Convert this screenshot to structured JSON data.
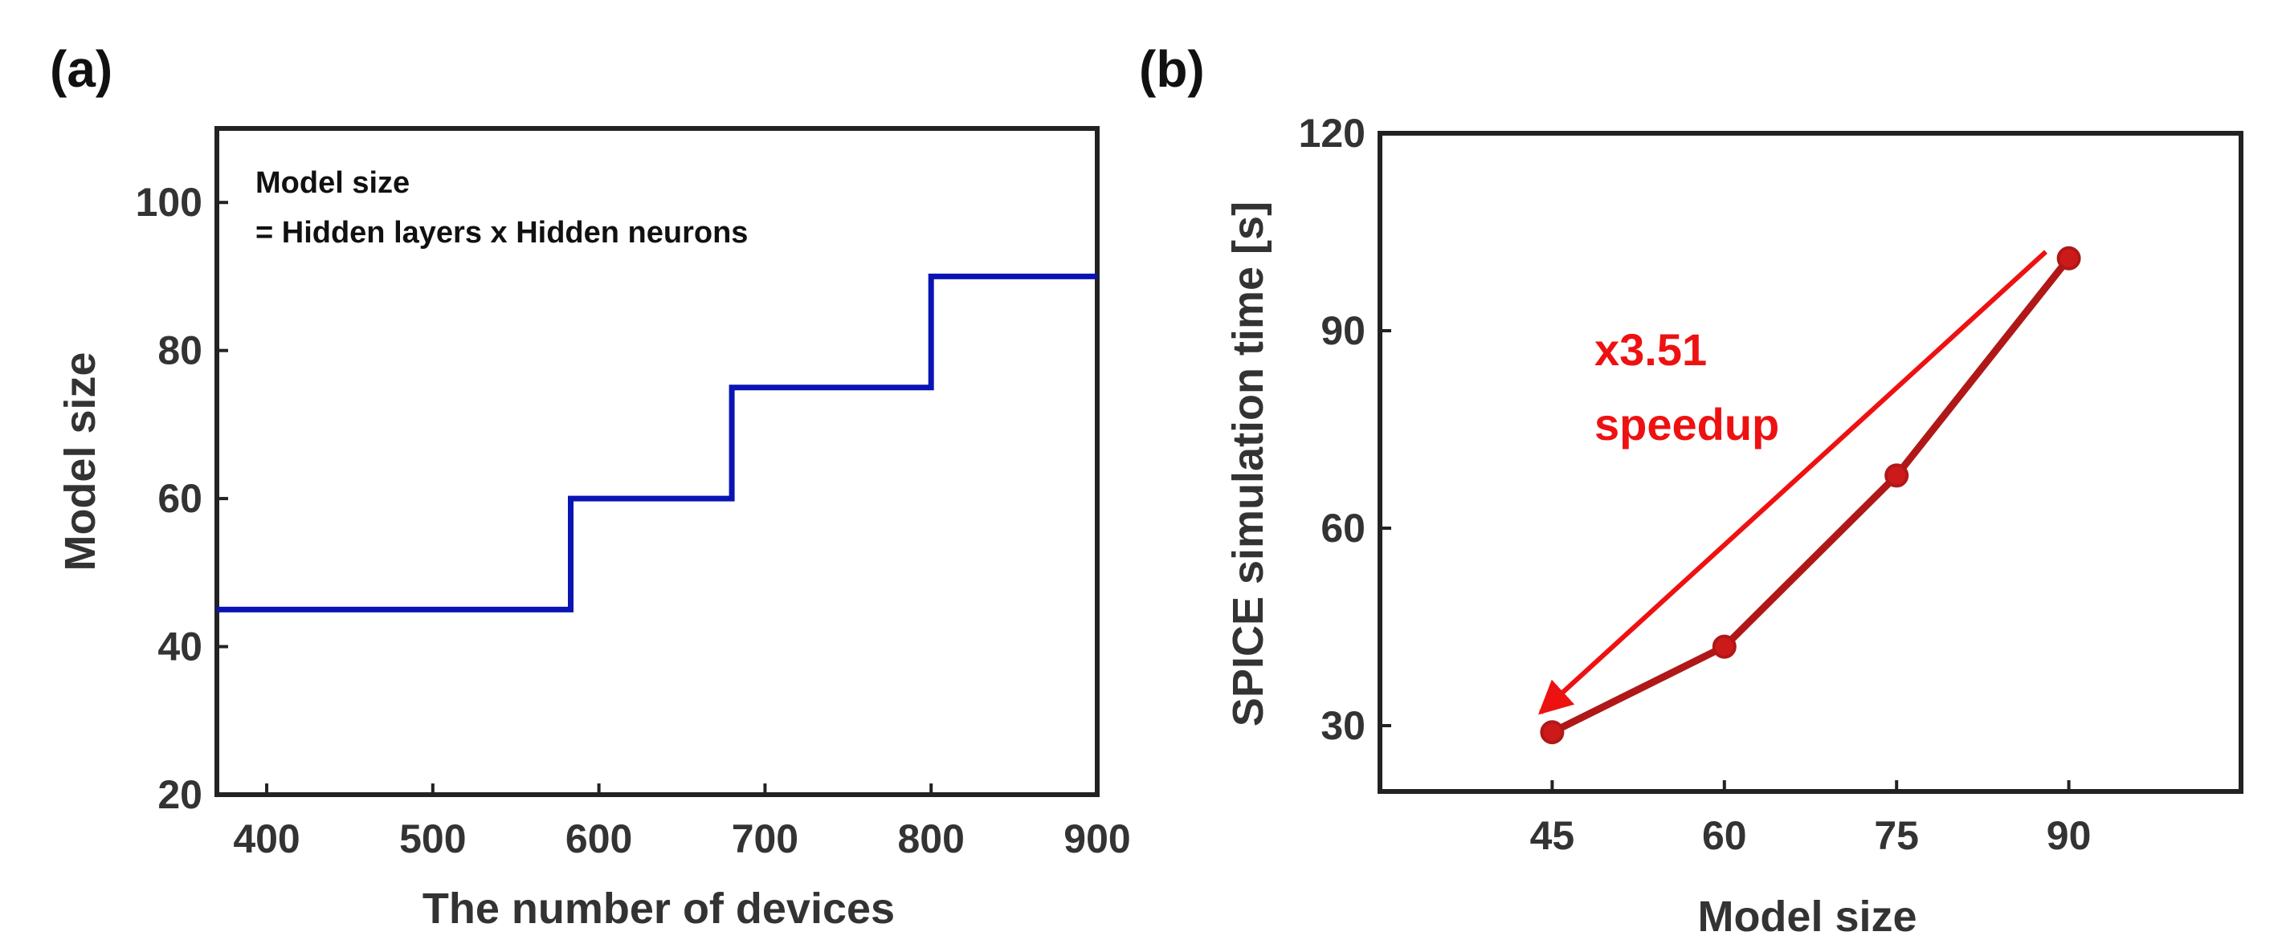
{
  "colors": {
    "step_line": "#0a14b4",
    "series_line": "#b01818",
    "series_marker": "#cc1a1a",
    "arrow": "#ee1111",
    "axis": "#222222",
    "text": "#333333"
  },
  "chart_data": [
    {
      "panel": "(a)",
      "type": "line",
      "style": "step",
      "title": "",
      "xlabel": "The number of devices",
      "ylabel": "Model size",
      "xlim": [
        370,
        900
      ],
      "ylim": [
        20,
        110
      ],
      "xticks": [
        400,
        500,
        600,
        700,
        800,
        900
      ],
      "yticks": [
        20,
        40,
        60,
        80,
        100
      ],
      "grid": false,
      "annotation_lines": [
        "Model size",
        "= Hidden layers x Hidden neurons"
      ],
      "series": [
        {
          "name": "Model size",
          "x": [
            370,
            583,
            583,
            680,
            680,
            800,
            800,
            900
          ],
          "values": [
            45,
            45,
            60,
            60,
            75,
            75,
            90,
            90
          ]
        }
      ]
    },
    {
      "panel": "(b)",
      "type": "line",
      "title": "",
      "xlabel": "Model size",
      "ylabel": "SPICE simulation time [s]",
      "xlim": [
        30,
        105
      ],
      "ylim": [
        20,
        120
      ],
      "xticks": [
        45,
        60,
        75,
        90
      ],
      "yticks": [
        30,
        60,
        90,
        120
      ],
      "grid": false,
      "annotation_lines": [
        "x3.51",
        "speedup"
      ],
      "arrow": {
        "from": [
          88,
          102
        ],
        "to": [
          44,
          32
        ]
      },
      "series": [
        {
          "name": "SPICE simulation time",
          "x": [
            45,
            60,
            75,
            90
          ],
          "values": [
            29,
            42,
            68,
            101
          ]
        }
      ]
    }
  ]
}
